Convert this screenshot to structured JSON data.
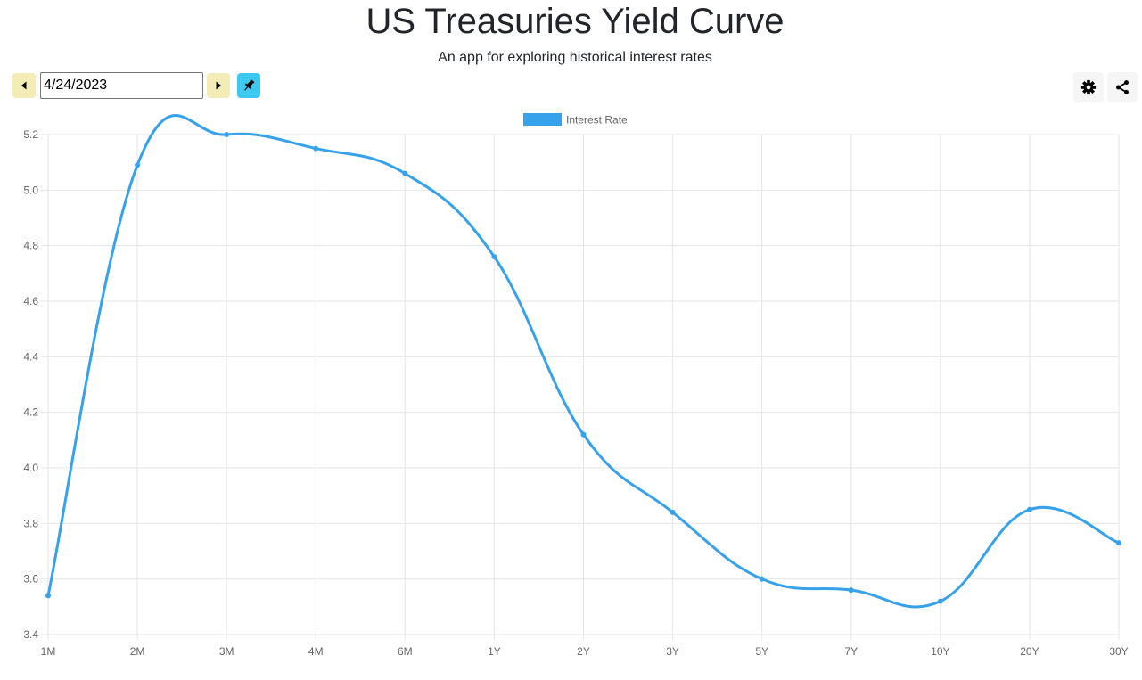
{
  "header": {
    "title": "US Treasuries Yield Curve",
    "subtitle": "An app for exploring historical interest rates"
  },
  "toolbar": {
    "date_value": "4/24/2023",
    "prev_icon": "triangle-left-icon",
    "next_icon": "triangle-right-icon",
    "pin_icon": "pin-icon",
    "settings_icon": "gear-icon",
    "share_icon": "share-icon"
  },
  "colors": {
    "accent": "#36a2eb",
    "nav_button": "#f3ecb6",
    "pin_button": "#3dc8ef"
  },
  "chart_data": {
    "type": "line",
    "categories": [
      "1M",
      "2M",
      "3M",
      "4M",
      "6M",
      "1Y",
      "2Y",
      "3Y",
      "5Y",
      "7Y",
      "10Y",
      "20Y",
      "30Y"
    ],
    "series": [
      {
        "name": "Interest Rate",
        "values": [
          3.54,
          5.09,
          5.2,
          5.15,
          5.06,
          4.76,
          4.12,
          3.84,
          3.6,
          3.56,
          3.52,
          3.85,
          3.73
        ]
      }
    ],
    "ylim": [
      3.4,
      5.2
    ],
    "yticks": [
      "3.4",
      "3.6",
      "3.8",
      "4.0",
      "4.2",
      "4.4",
      "4.6",
      "4.8",
      "5.0",
      "5.2"
    ],
    "legend": "top",
    "grid": true,
    "xlabel": "",
    "ylabel": ""
  }
}
